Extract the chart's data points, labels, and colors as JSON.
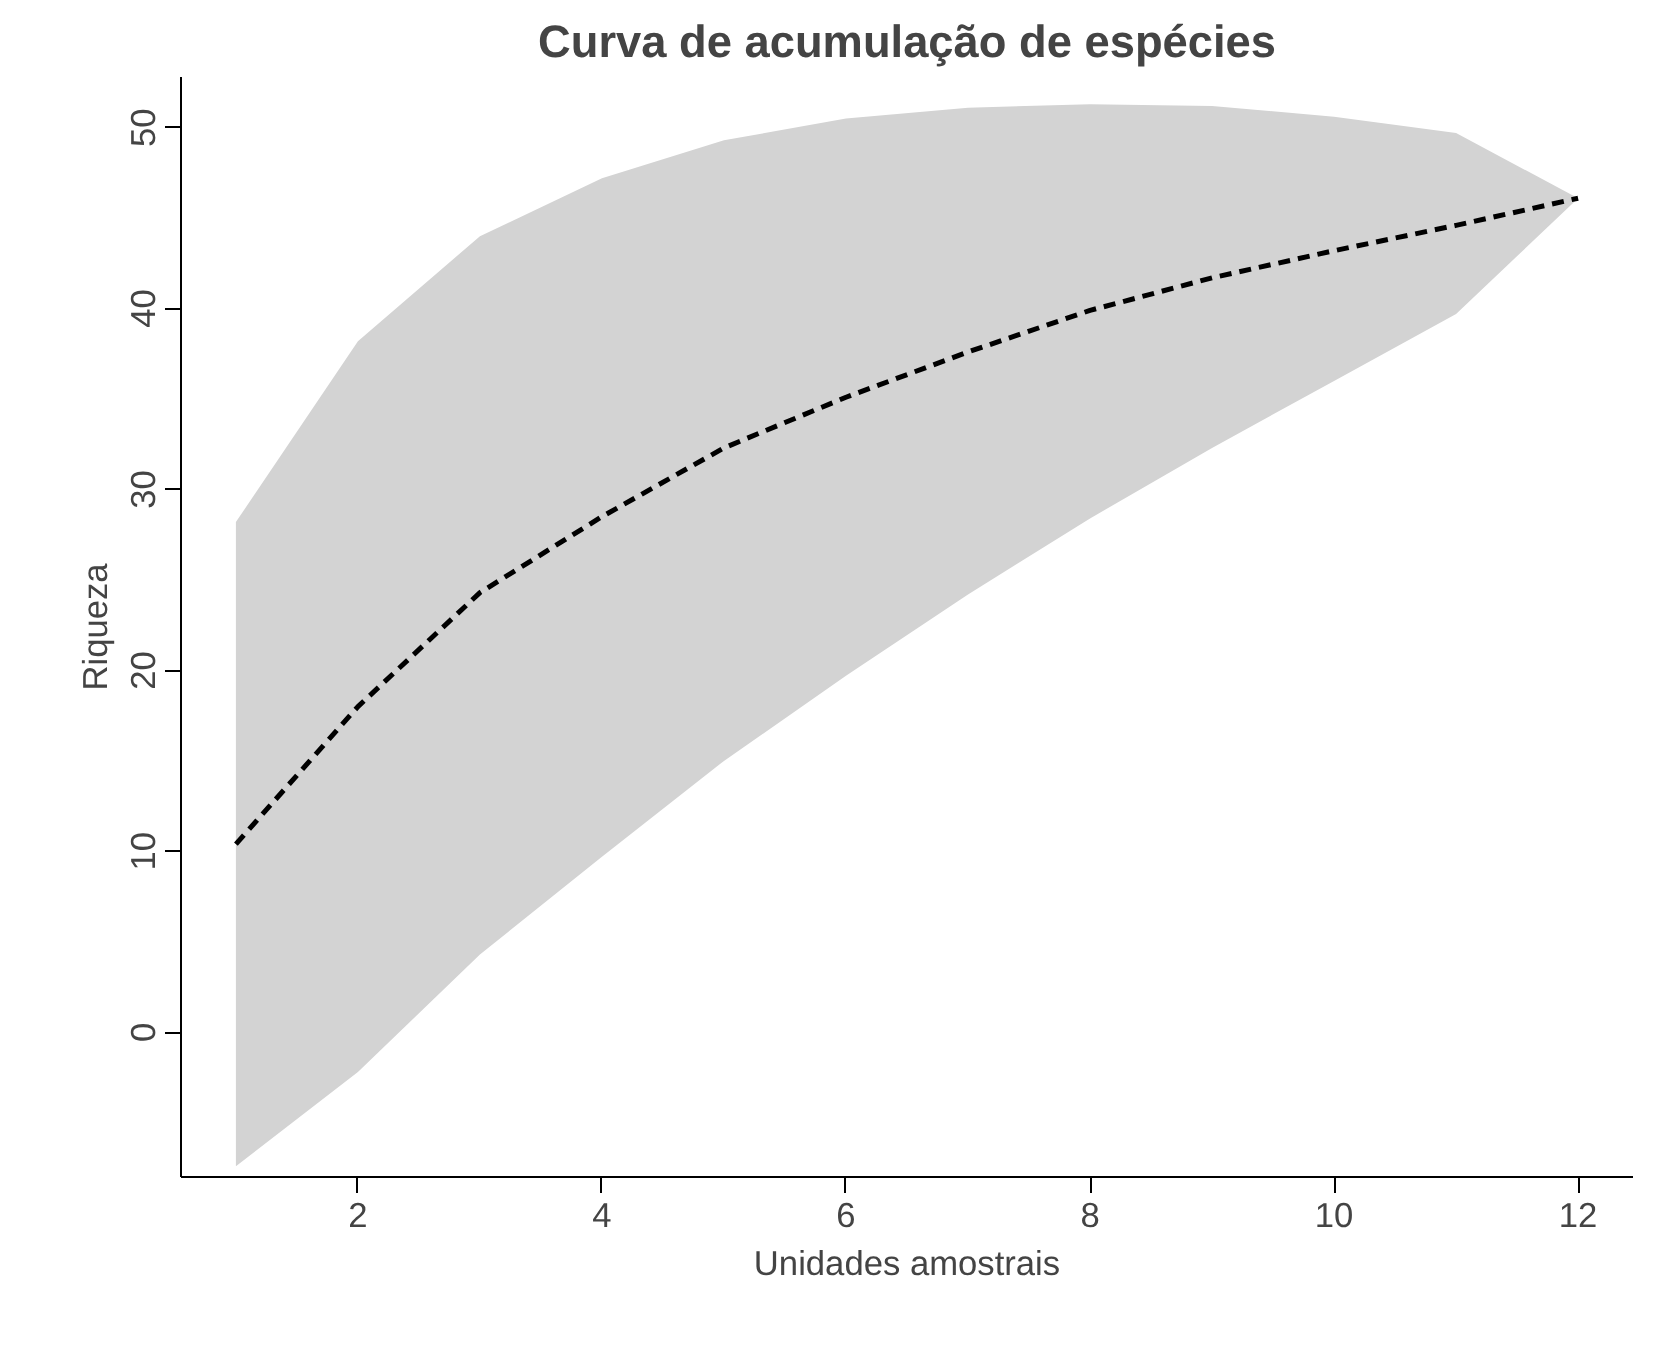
{
  "chart_data": {
    "type": "line",
    "title": "Curva de acumulação de espécies",
    "xlabel": "Unidades amostrais",
    "ylabel": "Riqueza",
    "x": [
      1,
      2,
      3,
      4,
      5,
      6,
      7,
      8,
      9,
      10,
      11,
      12
    ],
    "series": [
      {
        "color": "#000000",
        "line_style": "dashed",
        "values": [
          10.4,
          18.0,
          24.3,
          28.5,
          32.3,
          35.1,
          37.6,
          39.9,
          41.7,
          43.2,
          44.6,
          46.1
        ],
        "lower": [
          -7.4,
          -2.2,
          4.3,
          9.7,
          15.0,
          19.7,
          24.2,
          28.4,
          32.3,
          36.0,
          39.7,
          46.1
        ],
        "upper": [
          28.2,
          38.2,
          44.0,
          47.2,
          49.3,
          50.5,
          51.1,
          51.3,
          51.2,
          50.6,
          49.7,
          46.1
        ]
      }
    ],
    "xlim": [
      0.55,
      12.45
    ],
    "ylim": [
      -8,
      52.8
    ],
    "xticks": [
      2,
      4,
      6,
      8,
      10,
      12
    ],
    "yticks": [
      0,
      10,
      20,
      30,
      40,
      50
    ],
    "grid": false,
    "marker": "none"
  }
}
